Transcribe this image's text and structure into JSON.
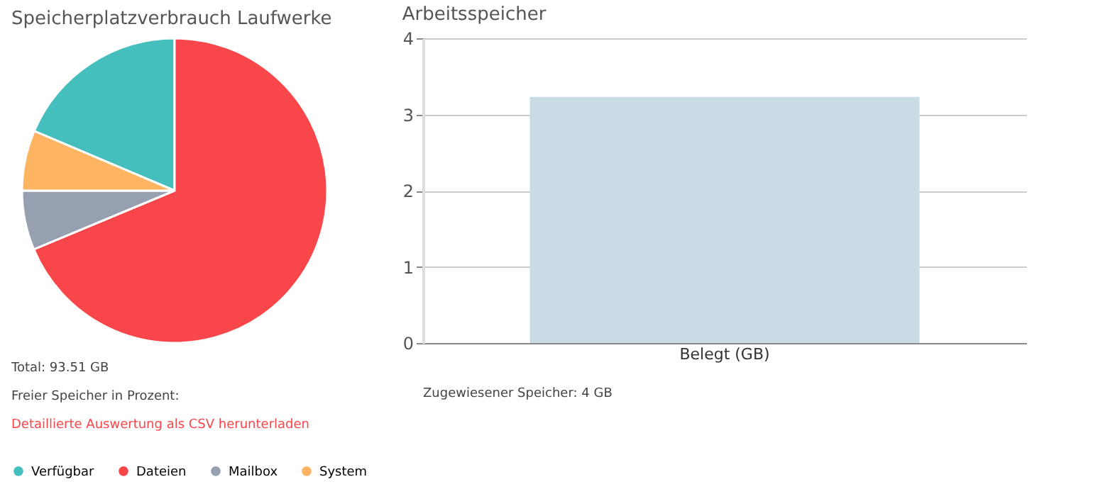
{
  "chart_data": [
    {
      "type": "pie",
      "title": "Speicherplatzverbrauch Laufwerke",
      "categories": [
        "Verfügbar",
        "Dateien",
        "Mailbox",
        "System"
      ],
      "values": [
        18.6,
        68.7,
        6.3,
        6.4
      ],
      "colors": [
        "#45bfbd",
        "#f9464a",
        "#97a0b0",
        "#feb461"
      ],
      "legend": "bottom",
      "annotations": [
        "Total: 93.51 GB",
        "Freier Speicher in Prozent:",
        "Detaillierte Auswertung als CSV herunterladen"
      ]
    },
    {
      "type": "bar",
      "title": "Arbeitsspeicher",
      "categories": [
        "Belegt (GB)"
      ],
      "values": [
        3.23
      ],
      "color": "#c9dce6",
      "ylim": [
        0,
        4
      ],
      "yticks": [
        0,
        1,
        2,
        3,
        4
      ],
      "grid": "y",
      "annotations": [
        "Zugewiesener Speicher: 4 GB"
      ]
    }
  ]
}
